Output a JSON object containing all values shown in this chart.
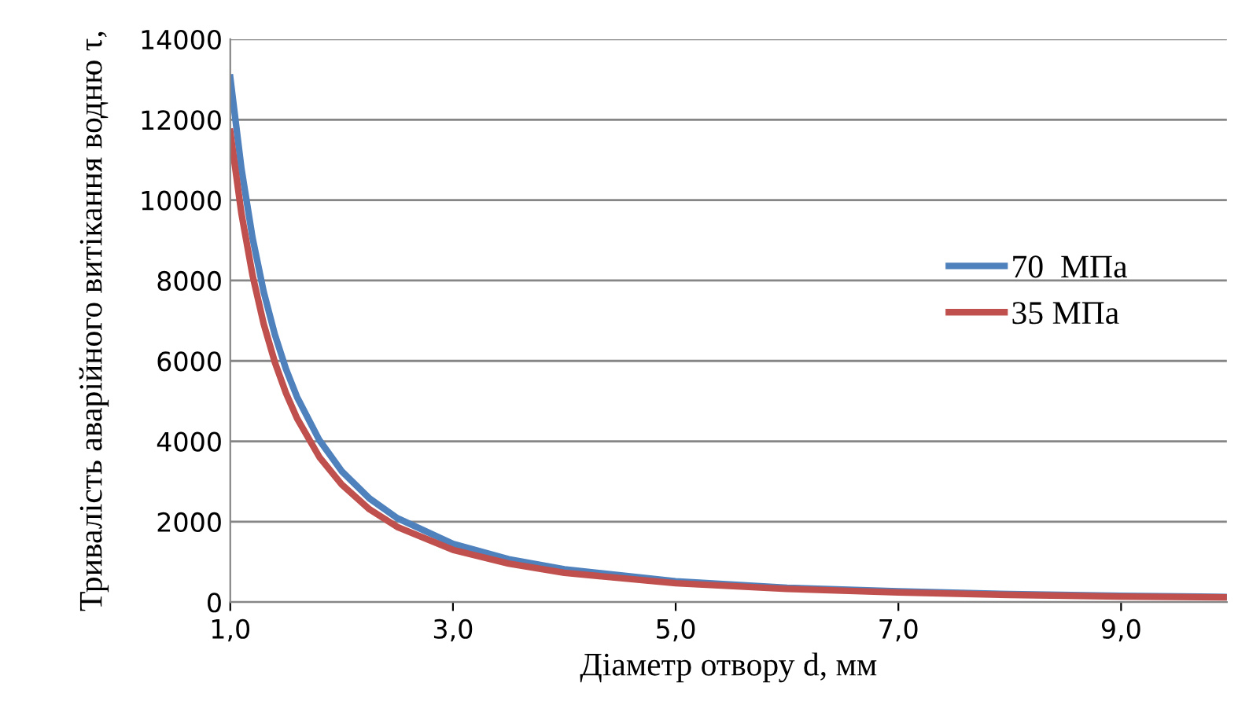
{
  "chart_data": {
    "type": "line",
    "xlabel": "Діаметр отвору d, мм",
    "ylabel": "Тривалість аварійного витікання водню τ,",
    "x": [
      1,
      1.1,
      1.2,
      1.3,
      1.4,
      1.5,
      1.6,
      1.8,
      2.0,
      2.25,
      2.5,
      3.0,
      3.5,
      4.0,
      5.0,
      6.0,
      7.0,
      8.0,
      9.0,
      9.95
    ],
    "series": [
      {
        "name": "70  МПа",
        "color": "#4f81bd",
        "values": [
          13050,
          10790,
          9060,
          7720,
          6660,
          5800,
          5100,
          4030,
          3260,
          2580,
          2090,
          1450,
          1070,
          820,
          520,
          360,
          270,
          200,
          160,
          130
        ]
      },
      {
        "name": "35 МПа",
        "color": "#c0504d",
        "values": [
          11700,
          9670,
          8130,
          6920,
          5970,
          5200,
          4570,
          3610,
          2930,
          2310,
          1870,
          1300,
          960,
          730,
          470,
          330,
          240,
          180,
          140,
          120
        ]
      }
    ],
    "xlim": [
      1,
      9.95
    ],
    "xticks": [
      {
        "value": 1,
        "label": "1,0"
      },
      {
        "value": 3,
        "label": "3,0"
      },
      {
        "value": 5,
        "label": "5,0"
      },
      {
        "value": 7,
        "label": "7,0"
      },
      {
        "value": 9,
        "label": "9,0"
      }
    ],
    "ylim": [
      0,
      14000
    ],
    "yticks": [
      0,
      2000,
      4000,
      6000,
      8000,
      10000,
      12000,
      14000
    ],
    "grid": "y",
    "legend": "right",
    "marker": "none",
    "line_style": "solid"
  }
}
